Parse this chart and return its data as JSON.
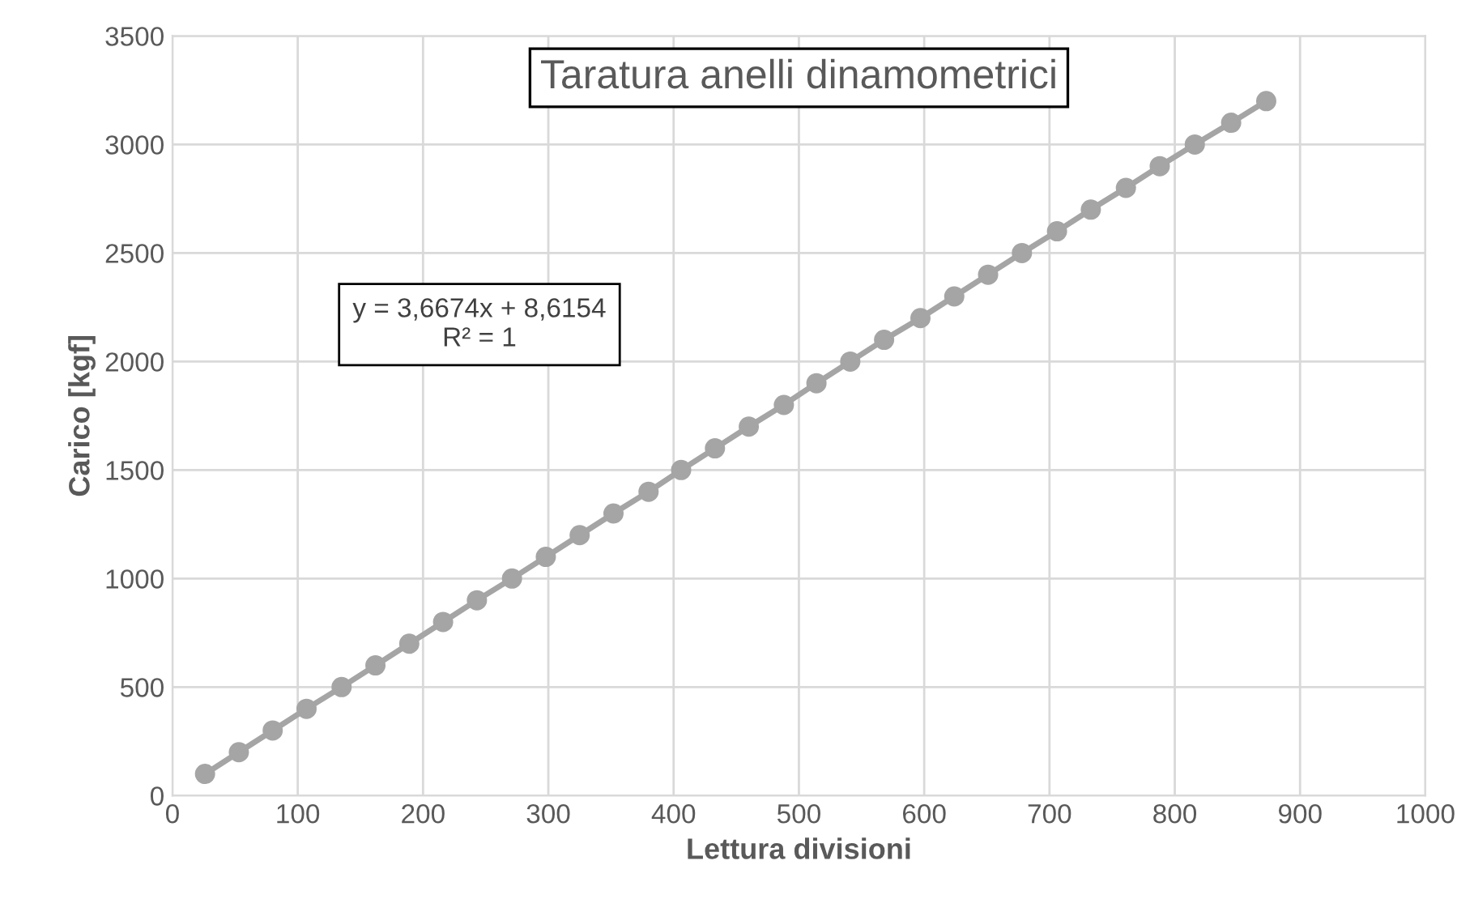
{
  "chart_data": {
    "type": "line",
    "title": "Taratura anelli dinamometrici",
    "xlabel": "Lettura divisioni",
    "ylabel": "Carico [kgf]",
    "annotations": [
      "y = 3,6674x + 8,6154\nR² = 1"
    ],
    "series": [
      {
        "color": "#a5a5a5",
        "x": [
          26,
          53,
          80,
          107,
          135,
          162,
          189,
          216,
          243,
          271,
          298,
          325,
          352,
          380,
          406,
          433,
          460,
          488,
          514,
          541,
          568,
          597,
          624,
          651,
          678,
          706,
          733,
          761,
          788,
          816,
          845,
          873
        ],
        "values": [
          100,
          200,
          300,
          400,
          500,
          600,
          700,
          800,
          900,
          1000,
          1100,
          1200,
          1300,
          1400,
          1500,
          1600,
          1700,
          1800,
          1900,
          2000,
          2100,
          2200,
          2300,
          2400,
          2500,
          2600,
          2700,
          2800,
          2900,
          3000,
          3100,
          3200
        ]
      }
    ],
    "xlim": [
      0,
      1000
    ],
    "xticks": [
      0,
      100,
      200,
      300,
      400,
      500,
      600,
      700,
      800,
      900,
      1000
    ],
    "ylim": [
      0,
      3500
    ],
    "yticks": [
      0,
      500,
      1000,
      1500,
      2000,
      2500,
      3000,
      3500
    ],
    "grid": true,
    "marker": "circle",
    "line_style": "solid"
  }
}
